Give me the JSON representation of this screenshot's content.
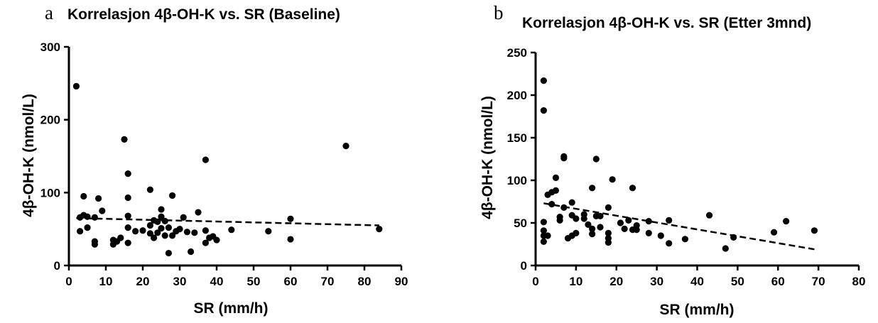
{
  "chart_data": [
    {
      "type": "scatter",
      "panel_letter": "a",
      "title": "Korrelasjon 4β-OH-K vs. SR (Baseline)",
      "xlabel": "SR (mm/h)",
      "ylabel": "4β-OH-K (nmol/L)",
      "xlim": [
        0,
        90
      ],
      "ylim": [
        0,
        300
      ],
      "xticks": [
        0,
        10,
        20,
        30,
        40,
        50,
        60,
        70,
        80,
        90
      ],
      "yticks": [
        0,
        100,
        200,
        300
      ],
      "grid": false,
      "trendline": {
        "style": "dashed",
        "x": [
          2,
          84
        ],
        "y": [
          65,
          55
        ]
      },
      "points": [
        [
          2,
          246
        ],
        [
          3,
          66
        ],
        [
          3,
          47
        ],
        [
          4,
          95
        ],
        [
          4,
          69
        ],
        [
          5,
          67
        ],
        [
          5,
          52
        ],
        [
          7,
          66
        ],
        [
          7,
          33
        ],
        [
          7,
          29
        ],
        [
          8,
          92
        ],
        [
          9,
          75
        ],
        [
          12,
          35
        ],
        [
          12,
          29
        ],
        [
          13,
          33
        ],
        [
          14,
          38
        ],
        [
          15,
          173
        ],
        [
          16,
          126
        ],
        [
          16,
          93
        ],
        [
          16,
          68
        ],
        [
          16,
          52
        ],
        [
          16,
          31
        ],
        [
          18,
          47
        ],
        [
          20,
          48
        ],
        [
          22,
          104
        ],
        [
          22,
          55
        ],
        [
          22,
          44
        ],
        [
          23,
          38
        ],
        [
          23,
          62
        ],
        [
          24,
          60
        ],
        [
          24,
          45
        ],
        [
          25,
          77
        ],
        [
          25,
          67
        ],
        [
          25,
          51
        ],
        [
          26,
          61
        ],
        [
          26,
          41
        ],
        [
          27,
          17
        ],
        [
          27,
          52
        ],
        [
          28,
          96
        ],
        [
          28,
          41
        ],
        [
          29,
          47
        ],
        [
          30,
          50
        ],
        [
          31,
          66
        ],
        [
          32,
          46
        ],
        [
          33,
          19
        ],
        [
          34,
          45
        ],
        [
          35,
          73
        ],
        [
          37,
          145
        ],
        [
          37,
          48
        ],
        [
          37,
          31
        ],
        [
          38,
          38
        ],
        [
          39,
          40
        ],
        [
          40,
          35
        ],
        [
          44,
          49
        ],
        [
          54,
          47
        ],
        [
          60,
          64
        ],
        [
          60,
          36
        ],
        [
          75,
          164
        ],
        [
          84,
          50
        ]
      ]
    },
    {
      "type": "scatter",
      "panel_letter": "b",
      "title": "Korrelasjon 4β-OH-K vs. SR (Etter 3mnd)",
      "xlabel": "SR (mm/h)",
      "ylabel": "4β-OH-K (nmol/L)",
      "xlim": [
        0,
        80
      ],
      "ylim": [
        0,
        250
      ],
      "xticks": [
        0,
        10,
        20,
        30,
        40,
        50,
        60,
        70,
        80
      ],
      "yticks": [
        0,
        50,
        100,
        150,
        200,
        250
      ],
      "grid": false,
      "trendline": {
        "style": "dashed",
        "x": [
          2,
          69
        ],
        "y": [
          73,
          19
        ]
      },
      "points": [
        [
          2,
          217
        ],
        [
          2,
          182
        ],
        [
          2,
          51
        ],
        [
          2,
          41
        ],
        [
          2,
          35
        ],
        [
          2,
          28
        ],
        [
          3,
          83
        ],
        [
          3,
          35
        ],
        [
          4,
          86
        ],
        [
          4,
          72
        ],
        [
          5,
          103
        ],
        [
          5,
          88
        ],
        [
          6,
          57
        ],
        [
          6,
          53
        ],
        [
          7,
          128
        ],
        [
          7,
          126
        ],
        [
          7,
          68
        ],
        [
          8,
          32
        ],
        [
          9,
          74
        ],
        [
          9,
          59
        ],
        [
          9,
          35
        ],
        [
          10,
          55
        ],
        [
          10,
          38
        ],
        [
          12,
          60
        ],
        [
          12,
          55
        ],
        [
          13,
          48
        ],
        [
          14,
          91
        ],
        [
          14,
          43
        ],
        [
          14,
          37
        ],
        [
          15,
          125
        ],
        [
          15,
          58
        ],
        [
          16,
          58
        ],
        [
          16,
          45
        ],
        [
          18,
          68
        ],
        [
          18,
          38
        ],
        [
          18,
          32
        ],
        [
          18,
          27
        ],
        [
          19,
          101
        ],
        [
          21,
          50
        ],
        [
          22,
          43
        ],
        [
          23,
          53
        ],
        [
          24,
          91
        ],
        [
          24,
          42
        ],
        [
          25,
          47
        ],
        [
          25,
          42
        ],
        [
          28,
          52
        ],
        [
          28,
          38
        ],
        [
          31,
          35
        ],
        [
          33,
          53
        ],
        [
          33,
          26
        ],
        [
          37,
          31
        ],
        [
          43,
          59
        ],
        [
          47,
          20
        ],
        [
          49,
          33
        ],
        [
          59,
          39
        ],
        [
          62,
          52
        ],
        [
          69,
          41
        ]
      ]
    }
  ]
}
